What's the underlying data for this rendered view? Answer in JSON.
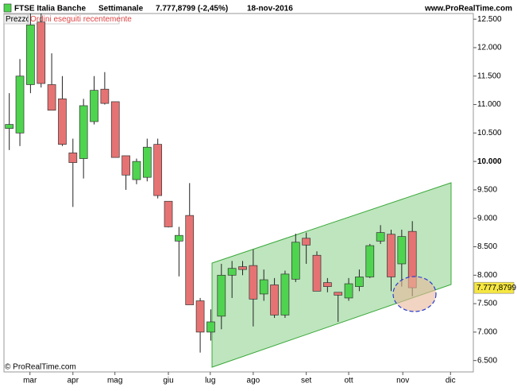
{
  "chart_data": {
    "type": "candlestick",
    "header": {
      "instrument": "FTSE Italia Banche",
      "period": "Settimanale",
      "quote": "7.777,8799 (-2,45%)",
      "date": "18-nov-2016",
      "site": "www.ProRealTime.com"
    },
    "tabs": [
      "Prezzo",
      "Ordini eseguiti recentemente"
    ],
    "footer": "© ProRealTime.com",
    "categories": [
      null,
      null,
      null,
      null,
      null,
      null,
      null,
      null,
      null,
      null,
      null,
      null,
      null,
      null,
      null,
      null,
      null,
      null,
      null,
      null,
      null,
      null,
      null,
      null,
      null,
      null,
      null,
      null,
      null,
      null,
      null,
      null,
      null,
      null,
      null,
      null,
      null,
      null,
      null
    ],
    "open": [
      10.58,
      10.5,
      11.35,
      12.45,
      11.35,
      11.1,
      10.15,
      10.05,
      10.7,
      11.27,
      11.05,
      10.1,
      9.68,
      9.72,
      10.3,
      9.3,
      8.6,
      9.05,
      7.55,
      7.0,
      7.28,
      8.0,
      8.15,
      8.17,
      7.67,
      7.83,
      7.3,
      7.93,
      8.65,
      8.35,
      7.87,
      7.7,
      7.6,
      7.8,
      7.97,
      8.6,
      8.72,
      8.2,
      8.77
    ],
    "high": [
      11.2,
      11.8,
      12.6,
      12.6,
      11.9,
      11.5,
      10.4,
      11.1,
      11.5,
      11.57,
      11.05,
      10.1,
      10.05,
      10.4,
      10.4,
      9.3,
      8.85,
      9.62,
      7.6,
      7.4,
      8.2,
      8.25,
      8.25,
      8.45,
      8.1,
      7.95,
      8.08,
      8.73,
      8.75,
      8.42,
      7.95,
      7.7,
      7.95,
      8.1,
      8.55,
      8.88,
      8.8,
      8.8,
      8.95
    ],
    "low": [
      10.2,
      10.27,
      11.2,
      11.3,
      10.9,
      10.27,
      9.2,
      9.7,
      10.65,
      11.0,
      10.07,
      9.5,
      9.6,
      9.65,
      9.35,
      8.84,
      7.98,
      7.48,
      6.64,
      6.85,
      7.05,
      7.6,
      8.0,
      7.1,
      7.55,
      7.25,
      7.25,
      7.88,
      8.2,
      7.72,
      7.7,
      7.18,
      7.55,
      7.72,
      7.95,
      8.55,
      7.72,
      7.8,
      7.63
    ],
    "close": [
      10.65,
      11.5,
      12.4,
      11.37,
      10.9,
      10.3,
      9.98,
      10.98,
      11.25,
      11.02,
      10.07,
      9.76,
      10.0,
      10.25,
      9.4,
      8.85,
      8.7,
      7.48,
      7.0,
      7.18,
      8.0,
      8.12,
      8.1,
      7.58,
      7.92,
      7.3,
      8.02,
      8.58,
      8.53,
      7.72,
      7.8,
      7.65,
      7.85,
      7.97,
      8.52,
      8.75,
      7.97,
      8.68,
      7.78
    ],
    "up_color": "#4fd44f",
    "down_color": "#e67373",
    "ylim": [
      6.3,
      12.6
    ],
    "yticks": [
      {
        "value": 12.5,
        "label": "12.500"
      },
      {
        "value": 12,
        "label": "12.000"
      },
      {
        "value": 11.5,
        "label": "11.500"
      },
      {
        "value": 11,
        "label": "11.000"
      },
      {
        "value": 10.5,
        "label": "10.500"
      },
      {
        "value": 10,
        "label": "10.000"
      },
      {
        "value": 9.5,
        "label": "9.500"
      },
      {
        "value": 9,
        "label": "9.000"
      },
      {
        "value": 8.5,
        "label": "8.500"
      },
      {
        "value": 8,
        "label": "8.000"
      },
      {
        "value": 7.5,
        "label": "7.500"
      },
      {
        "value": 7,
        "label": "7.000"
      },
      {
        "value": 6.5,
        "label": "6.500"
      }
    ],
    "xlim": [
      -0.5,
      43.75
    ],
    "xticks": [
      {
        "value": 1.95,
        "label": "mar"
      },
      {
        "value": 6,
        "label": "apr"
      },
      {
        "value": 9.96,
        "label": "mag"
      },
      {
        "value": 15,
        "label": "giu"
      },
      {
        "value": 18.95,
        "label": "lug"
      },
      {
        "value": 23,
        "label": "ago"
      },
      {
        "value": 28,
        "label": "set"
      },
      {
        "value": 32,
        "label": "ott"
      },
      {
        "value": 37.1,
        "label": "nov"
      },
      {
        "value": 41.6,
        "label": "dic"
      }
    ],
    "last_price": {
      "value": 7.7778799,
      "label": "7.777,8799"
    }
  }
}
